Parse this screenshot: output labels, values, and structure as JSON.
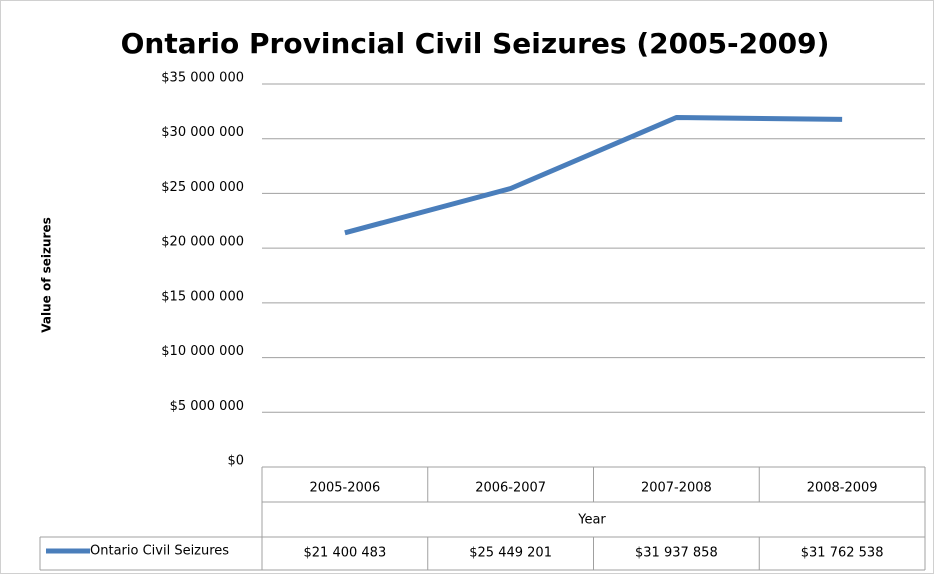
{
  "chart_data": {
    "type": "line",
    "title": "Ontario Provincial Civil Seizures (2005-2009)",
    "ylabel": "Value of seizures",
    "xlabel": "Year",
    "categories": [
      "2005-2006",
      "2006-2007",
      "2007-2008",
      "2008-2009"
    ],
    "series": [
      {
        "name": "Ontario Civil Seizures",
        "color": "#4a7ebb",
        "values": [
          21400483,
          25449201,
          31937858,
          31762538
        ],
        "value_labels": [
          "$21 400 483",
          "$25 449 201",
          "$31 937 858",
          "$31 762 538"
        ]
      }
    ],
    "ylim": [
      0,
      35000000
    ],
    "yticks": [
      {
        "value": 0,
        "label": "$0"
      },
      {
        "value": 5000000,
        "label": "$5 000 000"
      },
      {
        "value": 10000000,
        "label": "$10 000 000"
      },
      {
        "value": 15000000,
        "label": "$15 000 000"
      },
      {
        "value": 20000000,
        "label": "$20 000 000"
      },
      {
        "value": 25000000,
        "label": "$25 000 000"
      },
      {
        "value": 30000000,
        "label": "$30 000 000"
      },
      {
        "value": 35000000,
        "label": "$35 000 000"
      }
    ],
    "grid": true
  }
}
